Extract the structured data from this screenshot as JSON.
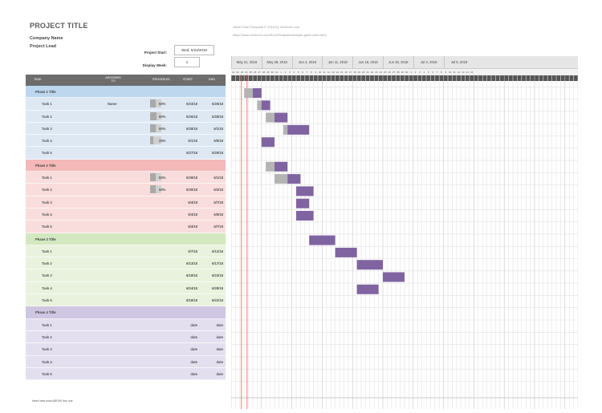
{
  "header": {
    "title": "PROJECT TITLE",
    "company": "Company Name",
    "lead": "Project Lead",
    "project_start_label": "Project Start:",
    "project_start_value": "Wed, 5/23/2018",
    "display_week_label": "Display Week:",
    "display_week_value": "1",
    "note1": "Gantt Chart Template © 2018 by Vertex42.com",
    "note2": "https://www.vertex42.com/ExcelTemplates/simple-gantt-chart.html"
  },
  "columns": {
    "task": "TASK",
    "assigned": "ASSIGNED TO",
    "progress": "PROGRESS",
    "start": "START",
    "end": "END"
  },
  "weeks": [
    "May 21, 2018",
    "May 28, 2018",
    "Jun 4, 2018",
    "Jun 11, 2018",
    "Jun 18, 2018",
    "Jun 25, 2018",
    "Jul 2, 2018",
    "Jul 9, 2018"
  ],
  "day_numbers": [
    "21",
    "22",
    "23",
    "24",
    "25",
    "26",
    "27",
    "28",
    "29",
    "30",
    "31",
    "1",
    "2",
    "3",
    "4",
    "5",
    "6",
    "7",
    "8",
    "9",
    "10",
    "11",
    "12",
    "13",
    "14",
    "15",
    "16",
    "17",
    "18",
    "19",
    "20",
    "21",
    "22",
    "23",
    "24",
    "25",
    "26",
    "27",
    "28",
    "29",
    "30",
    "1",
    "2",
    "3",
    "4",
    "5",
    "6",
    "7",
    "8",
    "9",
    "10",
    "11",
    "12",
    "13",
    "14",
    "15"
  ],
  "phases": [
    {
      "title": "Phase 1 Title",
      "color": "#bdd7ee",
      "light": "#dde8f3",
      "bar_color": "#8064a2",
      "tasks": [
        {
          "name": "Task 1",
          "assigned": "Name",
          "progress": "50%",
          "pct": 0.5,
          "start": "5/23/18",
          "end": "5/26/18",
          "bar_start": 3,
          "bar_len": 4,
          "done_len": 2
        },
        {
          "name": "Task 2",
          "assigned": "",
          "progress": "60%",
          "pct": 0.6,
          "start": "5/26/18",
          "end": "5/28/18",
          "bar_start": 6,
          "bar_len": 3,
          "done_len": 1
        },
        {
          "name": "Task 3",
          "assigned": "",
          "progress": "50%",
          "pct": 0.5,
          "start": "5/28/18",
          "end": "6/1/18",
          "bar_start": 8,
          "bar_len": 5,
          "done_len": 2
        },
        {
          "name": "Task 4",
          "assigned": "",
          "progress": "25%",
          "pct": 0.25,
          "start": "6/1/18",
          "end": "6/6/18",
          "bar_start": 12,
          "bar_len": 6,
          "done_len": 1
        },
        {
          "name": "Task 5",
          "assigned": "",
          "progress": "",
          "pct": 0,
          "start": "5/27/18",
          "end": "5/29/18",
          "bar_start": 7,
          "bar_len": 3,
          "done_len": 0
        }
      ]
    },
    {
      "title": "Phase 2 Title",
      "color": "#f4b8b8",
      "light": "#f9dcdc",
      "bar_color": "#8064a2",
      "tasks": [
        {
          "name": "Task 1",
          "assigned": "",
          "progress": "50%",
          "pct": 0.5,
          "start": "5/28/18",
          "end": "6/1/18",
          "bar_start": 8,
          "bar_len": 5,
          "done_len": 2
        },
        {
          "name": "Task 2",
          "assigned": "",
          "progress": "50%",
          "pct": 0.5,
          "start": "5/30/18",
          "end": "6/4/18",
          "bar_start": 10,
          "bar_len": 6,
          "done_len": 3
        },
        {
          "name": "Task 3",
          "assigned": "",
          "progress": "",
          "pct": 0,
          "start": "6/4/18",
          "end": "6/7/18",
          "bar_start": 15,
          "bar_len": 4,
          "done_len": 0
        },
        {
          "name": "Task 4",
          "assigned": "",
          "progress": "",
          "pct": 0,
          "start": "6/4/18",
          "end": "6/6/18",
          "bar_start": 15,
          "bar_len": 3,
          "done_len": 0
        },
        {
          "name": "Task 5",
          "assigned": "",
          "progress": "",
          "pct": 0,
          "start": "6/4/18",
          "end": "6/7/18",
          "bar_start": 15,
          "bar_len": 4,
          "done_len": 0
        }
      ]
    },
    {
      "title": "Phase 3 Title",
      "color": "#d3e8c0",
      "light": "#e8f2dd",
      "bar_color": "#8064a2",
      "tasks": [
        {
          "name": "Task 1",
          "assigned": "",
          "progress": "",
          "pct": 0,
          "start": "6/7/18",
          "end": "6/12/18",
          "bar_start": 18,
          "bar_len": 6,
          "done_len": 0
        },
        {
          "name": "Task 2",
          "assigned": "",
          "progress": "",
          "pct": 0,
          "start": "6/13/18",
          "end": "6/17/18",
          "bar_start": 24,
          "bar_len": 5,
          "done_len": 0
        },
        {
          "name": "Task 3",
          "assigned": "",
          "progress": "",
          "pct": 0,
          "start": "6/18/18",
          "end": "6/23/18",
          "bar_start": 29,
          "bar_len": 6,
          "done_len": 0
        },
        {
          "name": "Task 4",
          "assigned": "",
          "progress": "",
          "pct": 0,
          "start": "6/24/18",
          "end": "6/28/18",
          "bar_start": 35,
          "bar_len": 5,
          "done_len": 0
        },
        {
          "name": "Task 5",
          "assigned": "",
          "progress": "",
          "pct": 0,
          "start": "6/18/18",
          "end": "6/22/18",
          "bar_start": 29,
          "bar_len": 5,
          "done_len": 0
        }
      ]
    },
    {
      "title": "Phase 4 Title",
      "color": "#cfc6e2",
      "light": "#e4dfef",
      "bar_color": "#8064a2",
      "tasks": [
        {
          "name": "Task 1",
          "assigned": "",
          "progress": "",
          "pct": 0,
          "start": "date",
          "end": "date",
          "bar_start": -1,
          "bar_len": 0,
          "done_len": 0
        },
        {
          "name": "Task 2",
          "assigned": "",
          "progress": "",
          "pct": 0,
          "start": "date",
          "end": "date",
          "bar_start": -1,
          "bar_len": 0,
          "done_len": 0
        },
        {
          "name": "Task 3",
          "assigned": "",
          "progress": "",
          "pct": 0,
          "start": "date",
          "end": "date",
          "bar_start": -1,
          "bar_len": 0,
          "done_len": 0
        },
        {
          "name": "Task 4",
          "assigned": "",
          "progress": "",
          "pct": 0,
          "start": "date",
          "end": "date",
          "bar_start": -1,
          "bar_len": 0,
          "done_len": 0
        },
        {
          "name": "Task 5",
          "assigned": "",
          "progress": "",
          "pct": 0,
          "start": "date",
          "end": "date",
          "bar_start": -1,
          "bar_len": 0,
          "done_len": 0
        }
      ]
    }
  ],
  "footer_note": "Insert new rows ABOVE this one",
  "today_marker_day": 2
}
